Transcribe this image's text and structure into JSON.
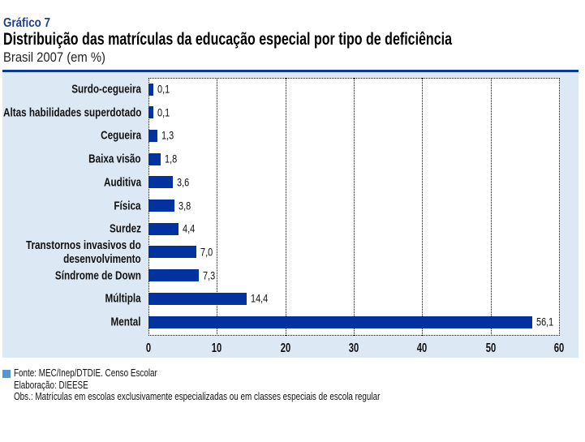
{
  "header": {
    "label": "Gráfico 7",
    "title": "Distribuição das matrículas da educação especial por tipo de deficiência",
    "subtitle": "Brasil 2007 (em %)"
  },
  "colors": {
    "bar": "#0033a0",
    "panel_background": "#dce8f4",
    "panel_rule": "#0a3a99",
    "label_blue": "#1f3f8f",
    "footnote_marker": "#5596d0"
  },
  "chart_data": {
    "type": "bar",
    "orientation": "horizontal",
    "title": "Distribuição das matrículas da educação especial por tipo de deficiência",
    "subtitle": "Brasil 2007 (em %)",
    "xlabel": "",
    "ylabel": "",
    "categories": [
      "Surdo-cegueira",
      "Altas habilidades superdotado",
      "Cegueira",
      "Baixa visão",
      "Auditiva",
      "Física",
      "Surdez",
      "Transtornos invasivos do\ndesenvolvimento",
      "Síndrome de Down",
      "Múltipla",
      "Mental"
    ],
    "values": [
      0.1,
      0.1,
      1.3,
      1.8,
      3.6,
      3.8,
      4.4,
      7.0,
      7.3,
      14.4,
      56.1
    ],
    "value_labels": [
      "0,1",
      "0,1",
      "1,3",
      "1,8",
      "3,6",
      "3,8",
      "4,4",
      "7,0",
      "7,3",
      "14,4",
      "56,1"
    ],
    "xlim": [
      0,
      60
    ],
    "xticks": [
      0,
      10,
      20,
      30,
      40,
      50,
      60
    ],
    "xtick_labels": [
      "0",
      "10",
      "20",
      "30",
      "40",
      "50",
      "60"
    ],
    "grid": true,
    "legend": "none"
  },
  "footnotes": {
    "source": "Fonte: MEC/Inep/DTDIE. Censo Escolar",
    "elaboration": "Elaboração: DIEESE",
    "note": "Obs.: Matrículas em escolas exclusivamente especializadas ou em classes especiais de escola regular"
  }
}
